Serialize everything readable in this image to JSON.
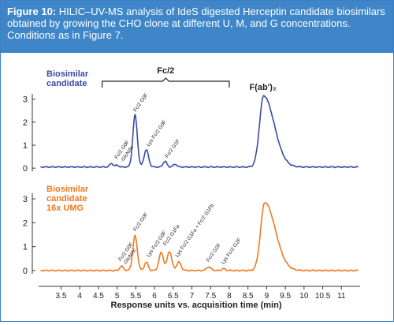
{
  "figure": {
    "label": "Figure 10:",
    "caption": "HILIC–UV-MS analysis of IdeS digested Herceptin candidate biosimilars obtained by growing the CHO clone at different U, M, and G concentrations. Conditions as in Figure 7."
  },
  "colors": {
    "header_bg": "#3f86c9",
    "blue_trace": "#3a4ba3",
    "orange_trace": "#f07a22",
    "title_blue": "#3a4ba3"
  },
  "chart_data": [
    {
      "type": "line",
      "series": [
        {
          "name": "Biosimilar candidate",
          "color": "#3a4ba3"
        }
      ],
      "title_lines": [
        "Biosimilar",
        "candidate"
      ],
      "bracket_label": "Fc/2",
      "bracket_range": [
        4.6,
        8.0
      ],
      "xlim": [
        2.9,
        11.5
      ],
      "ylim": [
        -0.2,
        3.3
      ],
      "yticks": [
        0,
        1,
        2,
        3
      ],
      "baseline": 0.05,
      "peaks": [
        {
          "x": 4.85,
          "y": 0.15,
          "w": 0.05
        },
        {
          "x": 5.0,
          "y": 0.08,
          "w": 0.04
        },
        {
          "x": 5.48,
          "y": 2.25,
          "w": 0.06
        },
        {
          "x": 5.78,
          "y": 0.75,
          "w": 0.06
        },
        {
          "x": 6.28,
          "y": 0.25,
          "w": 0.05
        },
        {
          "x": 6.55,
          "y": 0.12,
          "w": 0.05
        },
        {
          "x": 8.92,
          "y": 3.1,
          "w": 0.11,
          "tail": 0.28
        }
      ],
      "annotations": [
        {
          "text": "Fc/2 G0F",
          "x": 5.0,
          "y": 0.25
        },
        {
          "text": "-GlcNAc",
          "x": 5.15,
          "y": 0.1
        },
        {
          "text": "Fc/2 G0F",
          "x": 5.5,
          "y": 2.3
        },
        {
          "text": "Lys Fc/2 G0F",
          "x": 5.85,
          "y": 0.8
        },
        {
          "text": "Fc/2 G1F",
          "x": 6.35,
          "y": 0.3
        },
        {
          "text": "F(ab')₂",
          "x": 8.9,
          "y": 3.2
        }
      ]
    },
    {
      "type": "line",
      "series": [
        {
          "name": "Biosimilar candidate 16x UMG",
          "color": "#f07a22"
        }
      ],
      "title_lines": [
        "Biosimilar",
        "candidate",
        "16x UMG"
      ],
      "xlim": [
        2.9,
        11.5
      ],
      "ylim": [
        -0.2,
        3.3
      ],
      "yticks": [
        0,
        1,
        2,
        3
      ],
      "xticks": [
        3.5,
        4,
        4.5,
        5,
        5.5,
        6,
        6.5,
        7,
        7.5,
        8,
        8.5,
        9,
        9.5,
        10,
        10.5,
        11
      ],
      "xlabel": "Response units vs. acquisition time (min)",
      "baseline": 0.0,
      "peaks": [
        {
          "x": 5.12,
          "y": 0.18,
          "w": 0.05
        },
        {
          "x": 5.48,
          "y": 1.45,
          "w": 0.06
        },
        {
          "x": 5.78,
          "y": 0.35,
          "w": 0.05
        },
        {
          "x": 6.18,
          "y": 0.75,
          "w": 0.06
        },
        {
          "x": 6.4,
          "y": 0.8,
          "w": 0.06
        },
        {
          "x": 6.65,
          "y": 0.35,
          "w": 0.06
        },
        {
          "x": 7.45,
          "y": 0.15,
          "w": 0.06
        },
        {
          "x": 7.85,
          "y": 0.08,
          "w": 0.05
        },
        {
          "x": 8.95,
          "y": 2.85,
          "w": 0.11,
          "tail": 0.28
        }
      ],
      "annotations": [
        {
          "text": "Fc/2 G0F",
          "x": 5.1,
          "y": 0.25
        },
        {
          "text": "-GlcNAc",
          "x": 5.22,
          "y": 0.08
        },
        {
          "text": "Fc/2 G0F",
          "x": 5.5,
          "y": 1.5
        },
        {
          "text": "Lys Fc/2 G0F",
          "x": 5.85,
          "y": 0.42
        },
        {
          "text": "Fc/2 G1Fa",
          "x": 6.3,
          "y": 0.9
        },
        {
          "text": "Lys Fc/2 G1Fa + Fc/2 G1Fb",
          "x": 6.62,
          "y": 0.42
        },
        {
          "text": "Fc/2 G2F",
          "x": 7.45,
          "y": 0.22
        },
        {
          "text": "Lys Fc/2 G2F",
          "x": 7.85,
          "y": 0.12
        }
      ]
    }
  ]
}
